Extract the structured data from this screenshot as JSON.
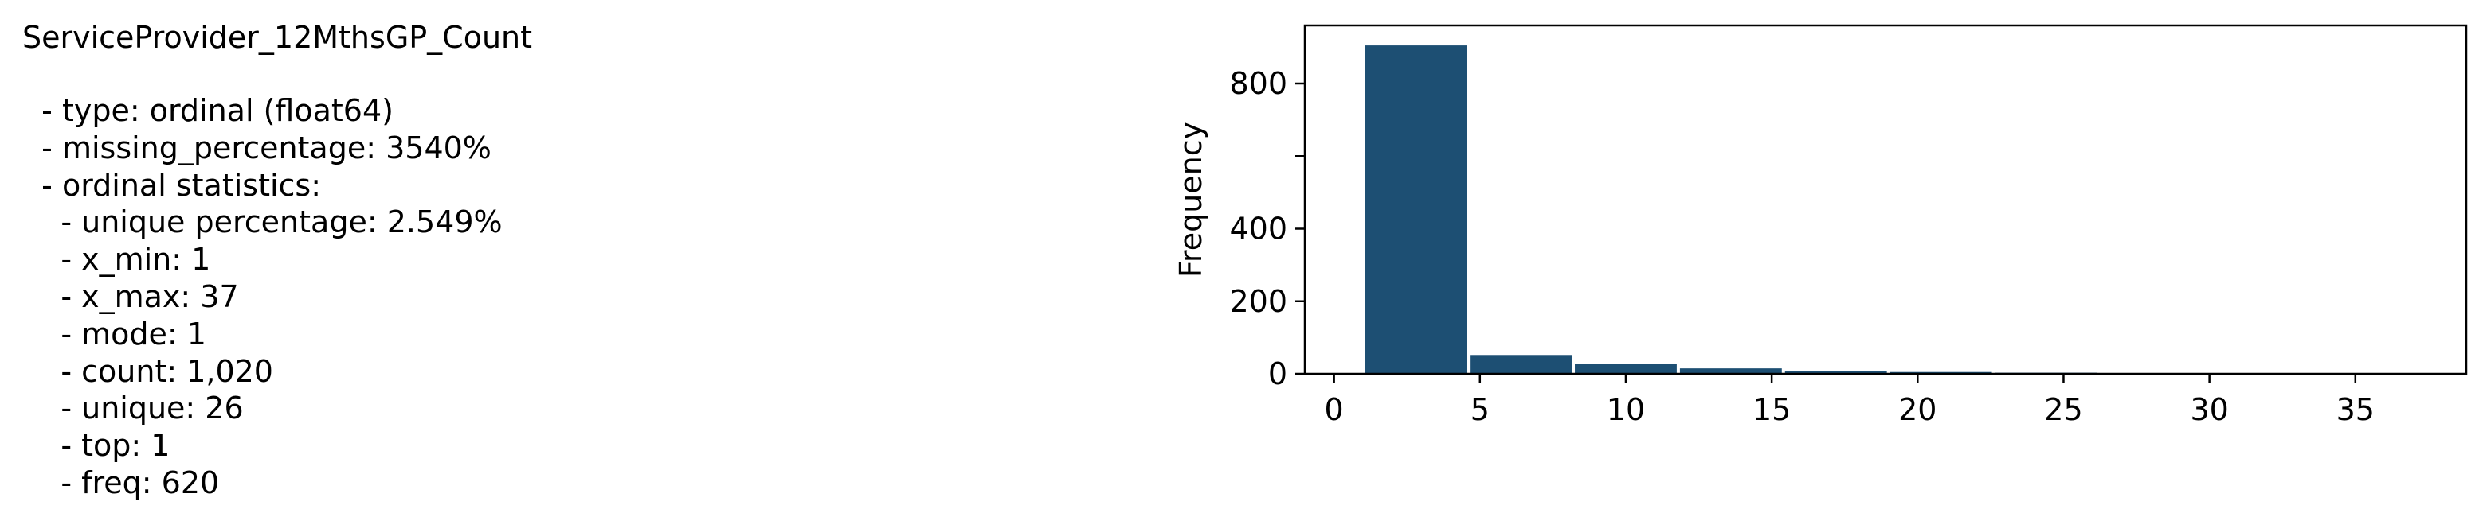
{
  "variable": {
    "name": "ServiceProvider_12MthsGP_Count",
    "stats_lines": [
      "  - type: ordinal (float64)",
      "  - missing_percentage: 3540%",
      "  - ordinal statistics:",
      "    - unique percentage: 2.549%",
      "    - x_min: 1",
      "    - x_max: 37",
      "    - mode: 1",
      "    - count: 1,020",
      "    - unique: 26",
      "    - top: 1",
      "    - freq: 620"
    ]
  },
  "chart_data": {
    "type": "bar",
    "title": "",
    "xlabel": "",
    "ylabel": "Frequency",
    "xlim": [
      -1,
      38.8
    ],
    "ylim": [
      0,
      960
    ],
    "x_ticks": [
      0,
      5,
      10,
      15,
      20,
      25,
      30,
      35
    ],
    "y_ticks": [
      0,
      200,
      400,
      800
    ],
    "y_tick_labels": [
      "0",
      "200",
      "400",
      "800"
    ],
    "y_ticks_all": [
      0,
      200,
      400,
      600,
      800
    ],
    "bins": [
      {
        "start": 1.0,
        "end": 4.6,
        "value": 905
      },
      {
        "start": 4.6,
        "end": 8.2,
        "value": 52
      },
      {
        "start": 8.2,
        "end": 11.8,
        "value": 27
      },
      {
        "start": 11.8,
        "end": 15.4,
        "value": 15
      },
      {
        "start": 15.4,
        "end": 19.0,
        "value": 8
      },
      {
        "start": 19.0,
        "end": 22.6,
        "value": 5
      },
      {
        "start": 22.6,
        "end": 26.2,
        "value": 3
      },
      {
        "start": 26.2,
        "end": 29.8,
        "value": 2
      },
      {
        "start": 29.8,
        "end": 33.4,
        "value": 1
      },
      {
        "start": 33.4,
        "end": 37.0,
        "value": 2
      }
    ],
    "bar_color": "#1d4f73"
  }
}
